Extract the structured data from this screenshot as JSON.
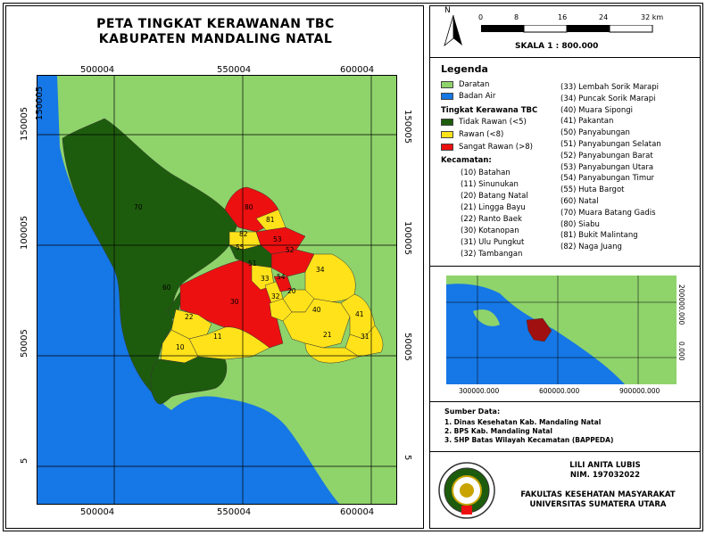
{
  "title": {
    "line1": "PETA TINGKAT KERAWANAN TBC",
    "line2": "KABUPATEN MANDALING NATAL"
  },
  "colors": {
    "land": "#8fd36b",
    "water": "#1677e6",
    "tidak_rawan": "#1e5c0d",
    "rawan": "#ffe21a",
    "sangat_rawan": "#ec1010"
  },
  "grid_labels": {
    "top": [
      "500004",
      "550004",
      "600004"
    ],
    "bottom": [
      "500004",
      "550004",
      "600004"
    ],
    "left": [
      "150005",
      "100005",
      "50005",
      "5"
    ],
    "right": [
      "150005",
      "100005",
      "50005",
      "5"
    ]
  },
  "district_labels": [
    "70",
    "80",
    "81",
    "82",
    "53",
    "55",
    "60",
    "52",
    "51",
    "33",
    "54",
    "34",
    "32",
    "20",
    "30",
    "40",
    "41",
    "31",
    "21",
    "22",
    "11",
    "10"
  ],
  "north": {
    "letter": "N"
  },
  "scalebar": {
    "ticks": [
      "0",
      "8",
      "16",
      "24",
      "32 km"
    ],
    "text": "SKALA 1 : 800.000"
  },
  "legend": {
    "title": "Legenda",
    "base": [
      {
        "label": "Daratan",
        "color": "#8fd36b"
      },
      {
        "label": "Badan Air",
        "color": "#1677e6"
      }
    ],
    "risk_title": "Tingkat Kerawana TBC",
    "risk": [
      {
        "label": "Tidak Rawan (<5)",
        "color": "#1e5c0d"
      },
      {
        "label": "Rawan (<8)",
        "color": "#ffe21a"
      },
      {
        "label": "Sangat Rawan (>8)",
        "color": "#ec1010"
      }
    ],
    "kec_title": "Kecamatan:",
    "kec_left": [
      "(10) Batahan",
      "(11) Sinunukan",
      "(20) Batang Natal",
      "(21) Lingga Bayu",
      "(22) Ranto Baek",
      "(30) Kotanopan",
      "(31) Ulu Pungkut",
      "(32) Tambangan"
    ],
    "kec_right": [
      "(33) Lembah Sorik Marapi",
      "(34) Puncak Sorik Marapi",
      "(40) Muara Sipongi",
      "(41) Pakantan",
      "(50) Panyabungan",
      "(51) Panyabungan Selatan",
      "(52) Panyabungan Barat",
      "(53) Panyabungan Utara",
      "(54) Panyabungan Timur",
      "(55) Huta Bargot",
      "(60) Natal",
      "(70) Muara Batang Gadis",
      "(80) Siabu",
      "(81) Bukit Malintang",
      "(82) Naga Juang"
    ]
  },
  "inset": {
    "x_labels": [
      "300000.000",
      "600000.000",
      "900000.000"
    ],
    "y_labels": [
      "200000.000",
      "0.000"
    ]
  },
  "sources": {
    "title": "Sumber Data:",
    "items": [
      "1. Dinas Kesehatan Kab. Mandaling Natal",
      "2. BPS Kab. Mandaling Natal",
      "3. SHP Batas Wilayah Kecamatan (BAPPEDA)"
    ]
  },
  "author": {
    "name": "LILI ANITA LUBIS",
    "nim": "NIM. 197032022",
    "faculty": "FAKULTAS KESEHATAN MASYARAKAT",
    "university": "UNIVERSITAS SUMATERA UTARA"
  }
}
